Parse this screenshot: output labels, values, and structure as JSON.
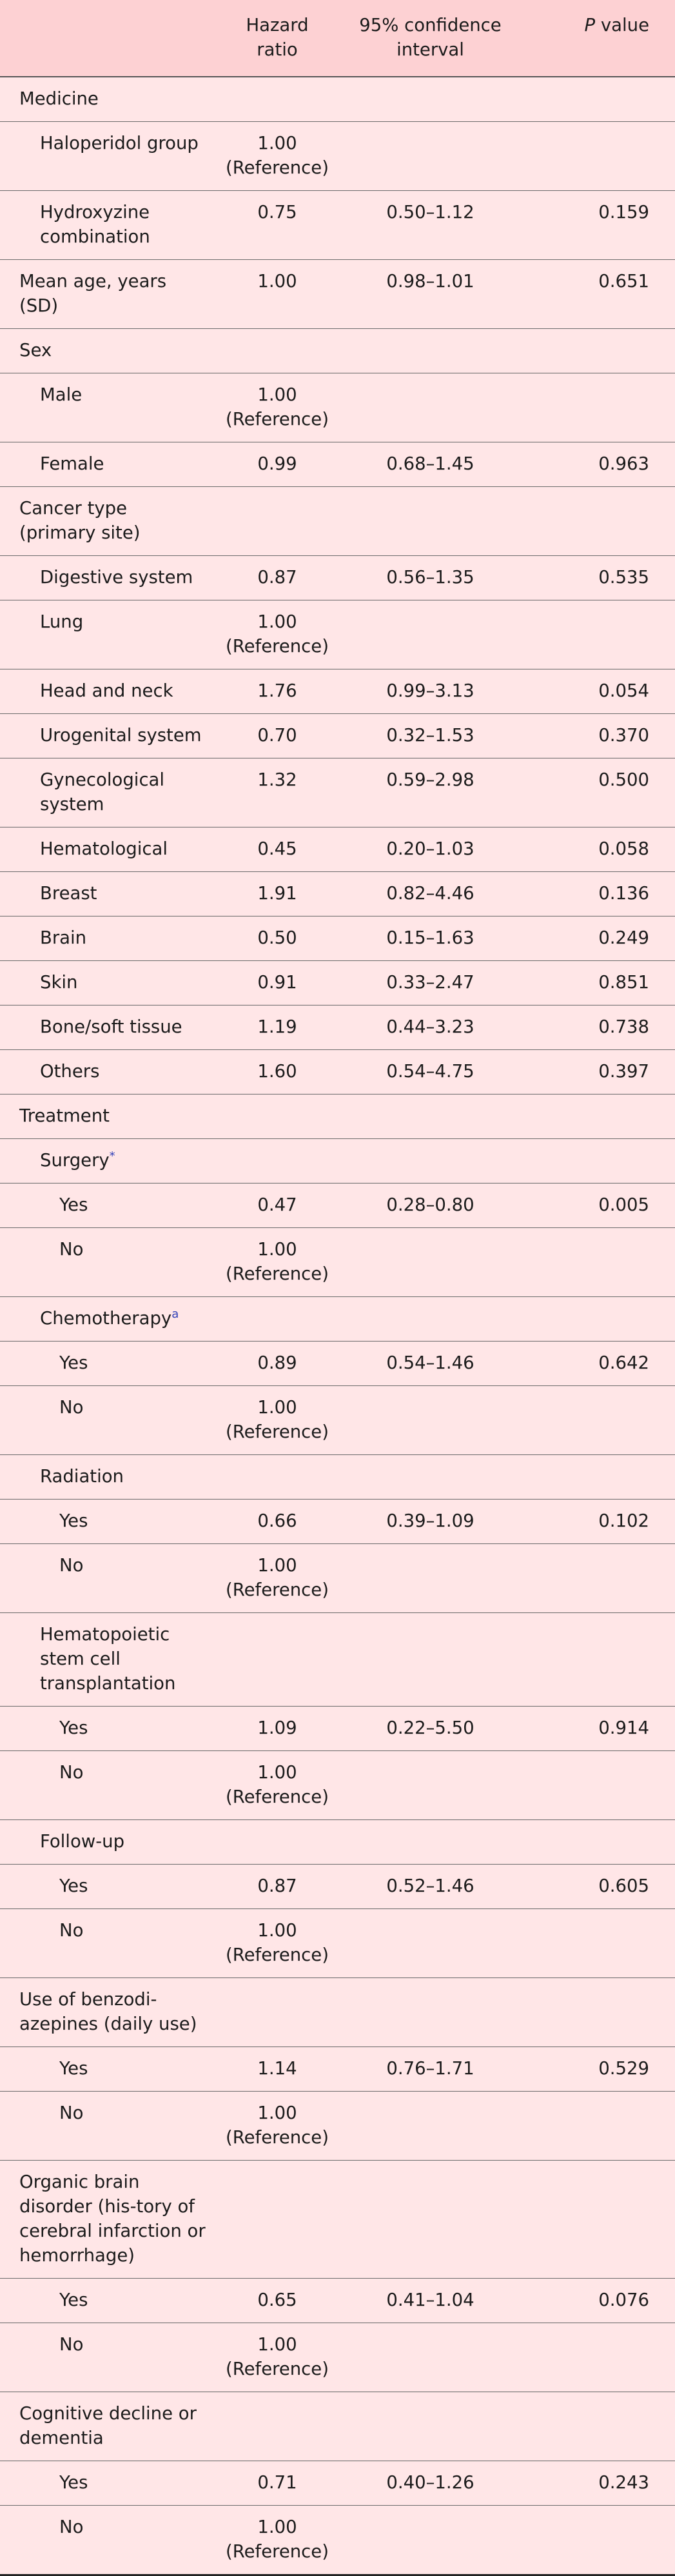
{
  "header": {
    "col_label": "",
    "col_hr_line1": "Hazard",
    "col_hr_line2": "ratio",
    "col_ci_line1": "95% confidence",
    "col_ci_line2": "interval",
    "col_p_italic": "P",
    "col_p_rest": " value"
  },
  "rows": [
    {
      "label": "Medicine",
      "level": 0,
      "hr1": "",
      "hr2": "",
      "ci": "",
      "p": "",
      "sup": ""
    },
    {
      "label": "Haloperidol group",
      "level": 1,
      "hr1": "1.00",
      "hr2": "(Reference)",
      "ci": "",
      "p": "",
      "sup": ""
    },
    {
      "label": "Hydroxyzine combination",
      "level": 1,
      "hr1": "0.75",
      "hr2": "",
      "ci": "0.50–1.12",
      "p": "0.159",
      "sup": ""
    },
    {
      "label": "Mean age, years (SD)",
      "level": 0,
      "hr1": "1.00",
      "hr2": "",
      "ci": "0.98–1.01",
      "p": "0.651",
      "sup": ""
    },
    {
      "label": "Sex",
      "level": 0,
      "hr1": "",
      "hr2": "",
      "ci": "",
      "p": "",
      "sup": ""
    },
    {
      "label": "Male",
      "level": 1,
      "hr1": "1.00",
      "hr2": "(Reference)",
      "ci": "",
      "p": "",
      "sup": ""
    },
    {
      "label": "Female",
      "level": 1,
      "hr1": "0.99",
      "hr2": "",
      "ci": "0.68–1.45",
      "p": "0.963",
      "sup": ""
    },
    {
      "label": "Cancer type (primary site)",
      "level": 0,
      "hr1": "",
      "hr2": "",
      "ci": "",
      "p": "",
      "sup": ""
    },
    {
      "label": "Digestive system",
      "level": 1,
      "hr1": "0.87",
      "hr2": "",
      "ci": "0.56–1.35",
      "p": "0.535",
      "sup": ""
    },
    {
      "label": "Lung",
      "level": 1,
      "hr1": "1.00",
      "hr2": "(Reference)",
      "ci": "",
      "p": "",
      "sup": ""
    },
    {
      "label": "Head and neck",
      "level": 1,
      "hr1": "1.76",
      "hr2": "",
      "ci": "0.99–3.13",
      "p": "0.054",
      "sup": ""
    },
    {
      "label": "Urogenital system",
      "level": 1,
      "hr1": "0.70",
      "hr2": "",
      "ci": "0.32–1.53",
      "p": "0.370",
      "sup": ""
    },
    {
      "label": "Gynecological system",
      "level": 1,
      "hr1": "1.32",
      "hr2": "",
      "ci": "0.59–2.98",
      "p": "0.500",
      "sup": ""
    },
    {
      "label": "Hematological",
      "level": 1,
      "hr1": "0.45",
      "hr2": "",
      "ci": "0.20–1.03",
      "p": "0.058",
      "sup": ""
    },
    {
      "label": "Breast",
      "level": 1,
      "hr1": "1.91",
      "hr2": "",
      "ci": "0.82–4.46",
      "p": "0.136",
      "sup": ""
    },
    {
      "label": "Brain",
      "level": 1,
      "hr1": "0.50",
      "hr2": "",
      "ci": "0.15–1.63",
      "p": "0.249",
      "sup": ""
    },
    {
      "label": "Skin",
      "level": 1,
      "hr1": "0.91",
      "hr2": "",
      "ci": "0.33–2.47",
      "p": "0.851",
      "sup": ""
    },
    {
      "label": "Bone/soft tissue",
      "level": 1,
      "hr1": "1.19",
      "hr2": "",
      "ci": "0.44–3.23",
      "p": "0.738",
      "sup": ""
    },
    {
      "label": "Others",
      "level": 1,
      "hr1": "1.60",
      "hr2": "",
      "ci": "0.54–4.75",
      "p": "0.397",
      "sup": ""
    },
    {
      "label": "Treatment",
      "level": 0,
      "hr1": "",
      "hr2": "",
      "ci": "",
      "p": "",
      "sup": ""
    },
    {
      "label": "Surgery",
      "level": 1,
      "hr1": "",
      "hr2": "",
      "ci": "",
      "p": "",
      "sup": "*"
    },
    {
      "label": "Yes",
      "level": 2,
      "hr1": "0.47",
      "hr2": "",
      "ci": "0.28–0.80",
      "p": "0.005",
      "sup": ""
    },
    {
      "label": "No",
      "level": 2,
      "hr1": "1.00",
      "hr2": "(Reference)",
      "ci": "",
      "p": "",
      "sup": ""
    },
    {
      "label": "Chemotherapy",
      "level": 1,
      "hr1": "",
      "hr2": "",
      "ci": "",
      "p": "",
      "sup": "a"
    },
    {
      "label": "Yes",
      "level": 2,
      "hr1": "0.89",
      "hr2": "",
      "ci": "0.54–1.46",
      "p": "0.642",
      "sup": ""
    },
    {
      "label": "No",
      "level": 2,
      "hr1": "1.00",
      "hr2": "(Reference)",
      "ci": "",
      "p": "",
      "sup": ""
    },
    {
      "label": "Radiation",
      "level": 1,
      "hr1": "",
      "hr2": "",
      "ci": "",
      "p": "",
      "sup": ""
    },
    {
      "label": "Yes",
      "level": 2,
      "hr1": "0.66",
      "hr2": "",
      "ci": "0.39–1.09",
      "p": "0.102",
      "sup": ""
    },
    {
      "label": "No",
      "level": 2,
      "hr1": "1.00",
      "hr2": "(Reference)",
      "ci": "",
      "p": "",
      "sup": ""
    },
    {
      "label": "Hematopoietic stem cell transplantation",
      "level": 1,
      "hr1": "",
      "hr2": "",
      "ci": "",
      "p": "",
      "sup": ""
    },
    {
      "label": "Yes",
      "level": 2,
      "hr1": "1.09",
      "hr2": "",
      "ci": "0.22–5.50",
      "p": "0.914",
      "sup": ""
    },
    {
      "label": "No",
      "level": 2,
      "hr1": "1.00",
      "hr2": "(Reference)",
      "ci": "",
      "p": "",
      "sup": ""
    },
    {
      "label": "Follow-up",
      "level": 1,
      "hr1": "",
      "hr2": "",
      "ci": "",
      "p": "",
      "sup": ""
    },
    {
      "label": "Yes",
      "level": 2,
      "hr1": "0.87",
      "hr2": "",
      "ci": "0.52–1.46",
      "p": "0.605",
      "sup": ""
    },
    {
      "label": "No",
      "level": 2,
      "hr1": "1.00",
      "hr2": "(Reference)",
      "ci": "",
      "p": "",
      "sup": ""
    },
    {
      "label": "Use of benzodi-azepines (daily use)",
      "level": 0,
      "hr1": "",
      "hr2": "",
      "ci": "",
      "p": "",
      "sup": ""
    },
    {
      "label": "Yes",
      "level": 2,
      "hr1": "1.14",
      "hr2": "",
      "ci": "0.76–1.71",
      "p": "0.529",
      "sup": ""
    },
    {
      "label": "No",
      "level": 2,
      "hr1": "1.00",
      "hr2": "(Reference)",
      "ci": "",
      "p": "",
      "sup": ""
    },
    {
      "label": "Organic brain disorder (his-tory of cerebral infarction or hemorrhage)",
      "level": 0,
      "hr1": "",
      "hr2": "",
      "ci": "",
      "p": "",
      "sup": ""
    },
    {
      "label": "Yes",
      "level": 2,
      "hr1": "0.65",
      "hr2": "",
      "ci": "0.41–1.04",
      "p": "0.076",
      "sup": ""
    },
    {
      "label": "No",
      "level": 2,
      "hr1": "1.00",
      "hr2": "(Reference)",
      "ci": "",
      "p": "",
      "sup": ""
    },
    {
      "label": "Cognitive decline or dementia",
      "level": 0,
      "hr1": "",
      "hr2": "",
      "ci": "",
      "p": "",
      "sup": ""
    },
    {
      "label": "Yes",
      "level": 2,
      "hr1": "0.71",
      "hr2": "",
      "ci": "0.40–1.26",
      "p": "0.243",
      "sup": ""
    },
    {
      "label": "No",
      "level": 2,
      "hr1": "1.00",
      "hr2": "(Reference)",
      "ci": "",
      "p": "",
      "sup": ""
    }
  ]
}
